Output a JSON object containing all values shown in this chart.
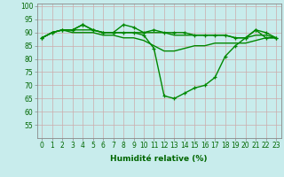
{
  "xlabel": "Humidité relative (%)",
  "background_color": "#c8ecec",
  "grid_color": "#b8d8d8",
  "line_color": "#008800",
  "series0": [
    88,
    90,
    91,
    91,
    93,
    91,
    90,
    90,
    93,
    92,
    90,
    91,
    90,
    90,
    90,
    89,
    89,
    89,
    89,
    88,
    88,
    91,
    90,
    88
  ],
  "series1": [
    88,
    90,
    91,
    91,
    91,
    91,
    90,
    90,
    90,
    90,
    90,
    90,
    90,
    89,
    89,
    89,
    89,
    89,
    89,
    88,
    88,
    89,
    89,
    88
  ],
  "series2": [
    88,
    90,
    91,
    91,
    93,
    91,
    90,
    90,
    90,
    90,
    89,
    84,
    66,
    65,
    67,
    69,
    70,
    73,
    81,
    85,
    88,
    91,
    88,
    88
  ],
  "series3": [
    88,
    90,
    91,
    90,
    90,
    90,
    89,
    89,
    88,
    88,
    87,
    85,
    83,
    83,
    84,
    85,
    85,
    86,
    86,
    86,
    86,
    87,
    88,
    88
  ],
  "ylim": [
    50,
    101
  ],
  "yticks": [
    55,
    60,
    65,
    70,
    75,
    80,
    85,
    90,
    95,
    100
  ],
  "xticks": [
    0,
    1,
    2,
    3,
    4,
    5,
    6,
    7,
    8,
    9,
    10,
    11,
    12,
    13,
    14,
    15,
    16,
    17,
    18,
    19,
    20,
    21,
    22,
    23
  ],
  "xlabel_fontsize": 6.5,
  "tick_fontsize": 5.5
}
